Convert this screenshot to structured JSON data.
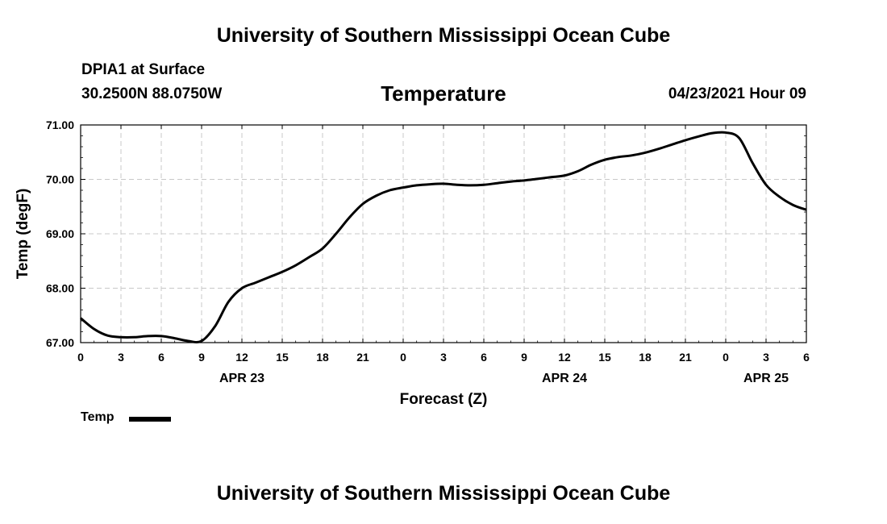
{
  "header": {
    "org_title": "University of Southern Mississippi Ocean Cube",
    "station": "DPIA1 at Surface",
    "coords": "30.2500N  88.0750W",
    "datetime": "04/23/2021 Hour 09"
  },
  "footer": {
    "org_title": "University of Southern Mississippi Ocean Cube"
  },
  "chart_data": {
    "type": "line",
    "title": "Temperature",
    "xlabel": "Forecast (Z)",
    "ylabel": "Temp (degF)",
    "xlim": [
      0,
      54
    ],
    "ylim": [
      67.0,
      71.0
    ],
    "grid": true,
    "x_ticks": [
      0,
      3,
      6,
      9,
      12,
      15,
      18,
      21,
      24,
      27,
      30,
      33,
      36,
      39,
      42,
      45,
      48,
      51,
      54
    ],
    "x_tick_labels": [
      "0",
      "3",
      "6",
      "9",
      "12",
      "15",
      "18",
      "21",
      "0",
      "3",
      "6",
      "9",
      "12",
      "15",
      "18",
      "21",
      "0",
      "3",
      "6"
    ],
    "date_labels": [
      {
        "x": 12,
        "label": "APR 23"
      },
      {
        "x": 36,
        "label": "APR 24"
      },
      {
        "x": 51,
        "label": "APR 25"
      }
    ],
    "y_ticks": [
      67.0,
      68.0,
      69.0,
      70.0,
      71.0
    ],
    "y_tick_labels": [
      "67.00",
      "68.00",
      "69.00",
      "70.00",
      "71.00"
    ],
    "legend": {
      "position": "bottom-left",
      "entries": [
        "Temp"
      ]
    },
    "series": [
      {
        "name": "Temp",
        "color": "#000000",
        "x": [
          0,
          1,
          2,
          3,
          4,
          5,
          6,
          7,
          8,
          9,
          10,
          11,
          12,
          13,
          14,
          15,
          16,
          17,
          18,
          19,
          20,
          21,
          22,
          23,
          24,
          25,
          26,
          27,
          28,
          29,
          30,
          31,
          32,
          33,
          34,
          35,
          36,
          37,
          38,
          39,
          40,
          41,
          42,
          43,
          44,
          45,
          46,
          47,
          48,
          49,
          50,
          51,
          52,
          53,
          54
        ],
        "values": [
          67.45,
          67.25,
          67.13,
          67.1,
          67.1,
          67.12,
          67.12,
          67.08,
          67.03,
          67.03,
          67.3,
          67.75,
          68.0,
          68.1,
          68.2,
          68.3,
          68.42,
          68.57,
          68.73,
          69.0,
          69.3,
          69.55,
          69.7,
          69.8,
          69.85,
          69.89,
          69.91,
          69.92,
          69.9,
          69.89,
          69.9,
          69.93,
          69.96,
          69.98,
          70.01,
          70.04,
          70.07,
          70.15,
          70.27,
          70.36,
          70.41,
          70.44,
          70.49,
          70.56,
          70.64,
          70.72,
          70.79,
          70.85,
          70.86,
          70.76,
          70.3,
          69.9,
          69.68,
          69.53,
          69.44
        ]
      }
    ]
  }
}
